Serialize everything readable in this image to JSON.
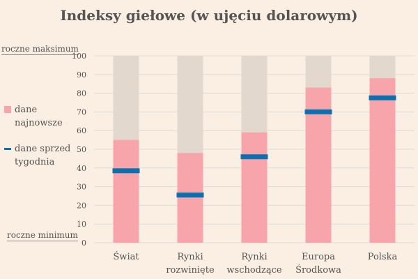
{
  "chart_data": {
    "type": "bar",
    "title": "Indeksy giełowe (w ujęciu dolarowym)",
    "categories": [
      [
        "Świat"
      ],
      [
        "Rynki",
        "rozwinięte"
      ],
      [
        "Rynki",
        "wschodzące"
      ],
      [
        "Europa",
        "Środkowa"
      ],
      [
        "Polska"
      ]
    ],
    "series": [
      {
        "name": "dane najnowsze",
        "values": [
          55,
          48,
          59,
          83,
          88
        ],
        "color": "#f7a5ab"
      },
      {
        "name": "dane sprzed tygodnia",
        "values": [
          38.5,
          25.5,
          46,
          70,
          77.5
        ],
        "color": "#0a70b0"
      }
    ],
    "background_range_color": "#e3d8cd",
    "ylim": [
      0,
      100
    ],
    "yticks": [
      0,
      10,
      20,
      30,
      40,
      50,
      60,
      70,
      80,
      90,
      100
    ],
    "top_label": "roczne maksimum",
    "bottom_label": "roczne minimum",
    "grid": true,
    "legend_placement": "left"
  }
}
